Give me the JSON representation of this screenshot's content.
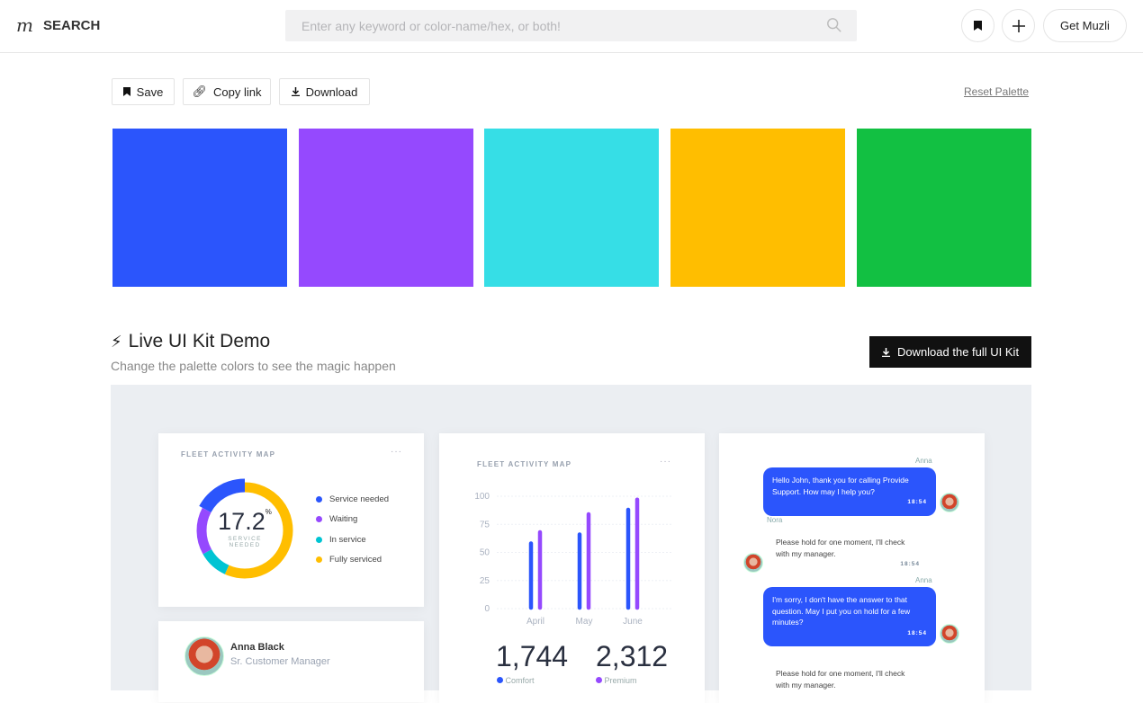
{
  "header": {
    "logo_glyph": "m",
    "title": "SEARCH",
    "search_placeholder": "Enter any keyword or color-name/hex, or both!",
    "get_label": "Get Muzli"
  },
  "toolbar": {
    "save": "Save",
    "copy": "Copy link",
    "download": "Download",
    "reset": "Reset Palette"
  },
  "palette": [
    "#2b55fc",
    "#9549fe",
    "#36dee6",
    "#ffbe00",
    "#12c042"
  ],
  "kit": {
    "title": "Live UI Kit Demo",
    "subtitle": "Change the palette colors to see the magic happen",
    "download": "Download the full UI Kit"
  },
  "donut_card": {
    "title": "FLEET ACTIVITY MAP",
    "more": "···",
    "value": "17.2",
    "unit": "%",
    "caption1": "SERVICE",
    "caption2": "NEEDED",
    "segments": [
      {
        "label": "Service needed",
        "pct": 17.2,
        "color": "#2b55fc"
      },
      {
        "label": "Waiting",
        "pct": 16,
        "color": "#9549fe"
      },
      {
        "label": "In service",
        "pct": 10,
        "color": "#00c4d3"
      },
      {
        "label": "Fully serviced",
        "pct": 56.8,
        "color": "#ffbe00"
      }
    ]
  },
  "profile": {
    "name": "Anna Black",
    "role": "Sr. Customer Manager"
  },
  "chart_card": {
    "title": "FLEET ACTIVITY MAP",
    "more": "···",
    "stat1": "1,744",
    "stat1_label": "Comfort",
    "stat2": "2,312",
    "stat2_label": "Premium"
  },
  "chart_data": {
    "type": "bar",
    "categories": [
      "April",
      "May",
      "June"
    ],
    "series": [
      {
        "name": "Comfort",
        "color": "#2b55fc",
        "values": [
          58,
          66,
          88
        ]
      },
      {
        "name": "Premium",
        "color": "#9549fe",
        "values": [
          68,
          84,
          97
        ]
      }
    ],
    "yticks": [
      "0",
      "25",
      "50",
      "75",
      "100"
    ],
    "ylim": [
      0,
      100
    ],
    "grid": true
  },
  "chat": [
    {
      "from": "Anna",
      "text": "Hello John, thank you for calling Provide Support. How may I help you?",
      "time": "18:54",
      "side": "right"
    },
    {
      "from": "Nora",
      "text": "Please hold for one moment, I'll check with my manager.",
      "time": "18:54",
      "side": "left"
    },
    {
      "from": "Anna",
      "text": "I'm sorry, I don't have the answer to that question. May I put you on hold for a few minutes?",
      "time": "18:54",
      "side": "right"
    },
    {
      "text": "Please hold for one moment, I'll check with my manager."
    }
  ]
}
